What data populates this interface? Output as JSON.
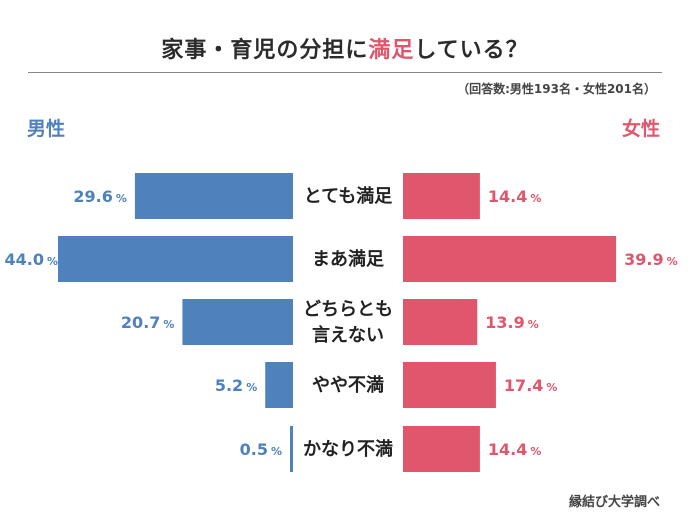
{
  "chart_data": {
    "type": "bar",
    "orientation": "horizontal-diverging",
    "title_parts": [
      "家事・育児の分担に",
      "満足",
      "している？"
    ],
    "note": "（回答数:男性193名・女性201名）",
    "categories": [
      [
        "とても満足"
      ],
      [
        "まあ満足"
      ],
      [
        "どちらとも",
        "言えない"
      ],
      [
        "やや不満"
      ],
      [
        "かなり不満"
      ]
    ],
    "series": [
      {
        "name": "男性",
        "side": "left",
        "color": "#4f81bd",
        "values": [
          29.6,
          44.0,
          20.7,
          5.2,
          0.5
        ],
        "labels": [
          "29.6",
          "44.0",
          "20.7",
          "5.2",
          "0.5"
        ]
      },
      {
        "name": "女性",
        "side": "right",
        "color": "#e0566d",
        "values": [
          14.4,
          39.9,
          13.9,
          17.4,
          14.4
        ],
        "labels": [
          "14.4",
          "39.9",
          "13.9",
          "17.4",
          "14.4"
        ]
      }
    ],
    "unit": "%",
    "xlim": [
      0,
      44
    ],
    "source": "縁結び大学調べ"
  }
}
